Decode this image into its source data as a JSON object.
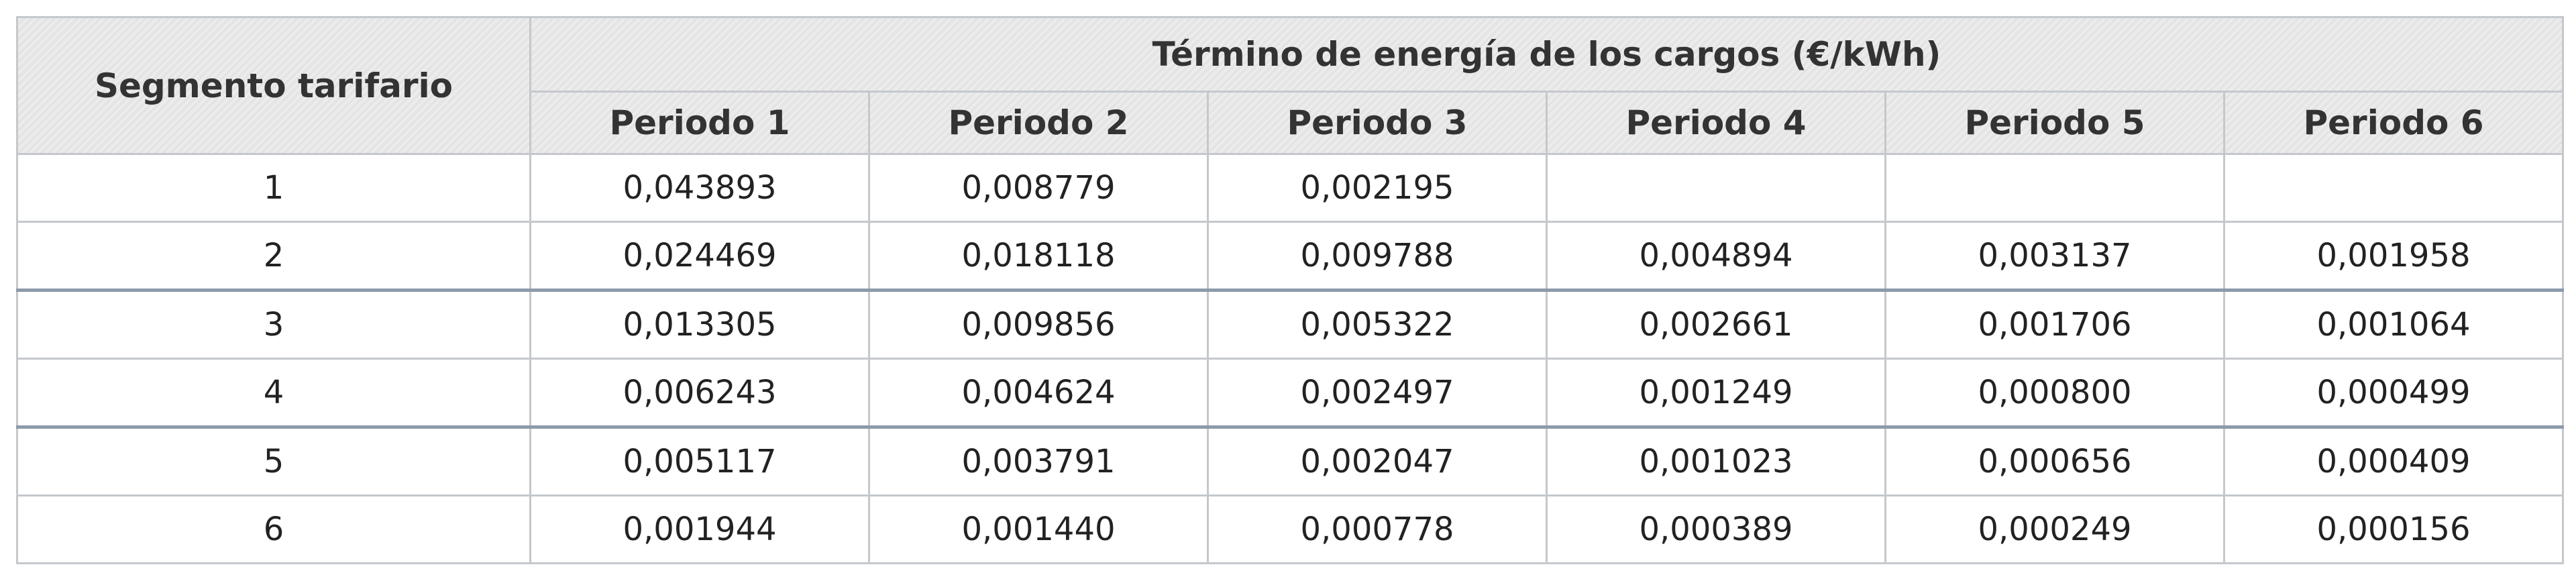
{
  "table": {
    "header": {
      "row_label": "Segmento tarifario",
      "group": "Término de energía de los cargos (€/kWh)",
      "periods": [
        "Periodo 1",
        "Periodo 2",
        "Periodo 3",
        "Periodo 4",
        "Periodo 5",
        "Periodo 6"
      ]
    },
    "rows": [
      [
        "1",
        "0,043893",
        "0,008779",
        "0,002195",
        null,
        null,
        null
      ],
      [
        "2",
        "0,024469",
        "0,018118",
        "0,009788",
        "0,004894",
        "0,003137",
        "0,001958"
      ],
      [
        "3",
        "0,013305",
        "0,009856",
        "0,005322",
        "0,002661",
        "0,001706",
        "0,001064"
      ],
      [
        "4",
        "0,006243",
        "0,004624",
        "0,002497",
        "0,001249",
        "0,000800",
        "0,000499"
      ],
      [
        "5",
        "0,005117",
        "0,003791",
        "0,002047",
        "0,001023",
        "0,000656",
        "0,000409"
      ],
      [
        "6",
        "0,001944",
        "0,001440",
        "0,000778",
        "0,000389",
        "0,000249",
        "0,000156"
      ]
    ]
  }
}
